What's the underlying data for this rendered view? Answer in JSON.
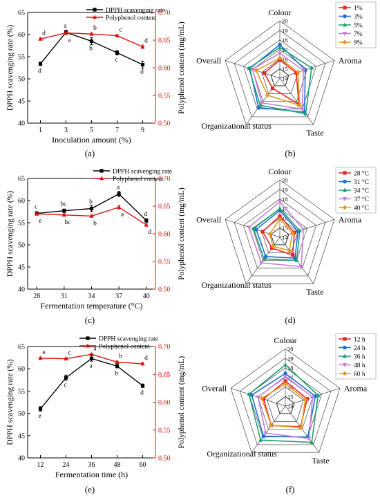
{
  "colors": {
    "dpph": "#000000",
    "polyphenol": "#e01010",
    "radar": [
      "#e5262b",
      "#1f6fd0",
      "#1f9e75",
      "#c77ddb",
      "#e39a1b"
    ]
  },
  "chart_data": [
    {
      "panel": "(a)",
      "type": "line",
      "xlabel": "Inoculation amount (%)",
      "ylabel": "DPPH scavenging rate (%)",
      "y2label": "Polyphenol content (mg/mL)",
      "x": [
        1,
        3,
        5,
        7,
        9
      ],
      "xlim": [
        0,
        10
      ],
      "ylim": [
        40,
        65
      ],
      "yticks": [
        40,
        45,
        50,
        55,
        60,
        65
      ],
      "y2lim": [
        0.5,
        0.7
      ],
      "y2ticks": [
        "0.50",
        "0.55",
        "0.60",
        "0.65",
        "0.70"
      ],
      "legend": "top-left",
      "series": [
        {
          "name": "DPPH scavenging rate",
          "axis": "left",
          "values": [
            53.4,
            60.5,
            58.5,
            55.9,
            53.2
          ],
          "errors": [
            0.4,
            0.5,
            0.8,
            0.5,
            0.8
          ],
          "letters": [
            "d",
            "a",
            "b",
            "c",
            "d"
          ]
        },
        {
          "name": "Polyphenol content",
          "axis": "right",
          "values": [
            0.652,
            0.663,
            0.661,
            0.658,
            0.638
          ],
          "errors": [
            0.002,
            0.002,
            0.002,
            0.002,
            0.003
          ],
          "letters": [
            "d",
            "a",
            "b",
            "c",
            "d"
          ]
        }
      ]
    },
    {
      "panel": "(c)",
      "type": "line",
      "xlabel": "Fermentation temperature (°C)",
      "ylabel": "DPPH scavenging rate (%)",
      "y2label": "Polyphenol content (mg/mL)",
      "x": [
        28,
        31,
        34,
        37,
        40
      ],
      "xlim": [
        27,
        41
      ],
      "ylim": [
        40,
        65
      ],
      "yticks": [
        40,
        45,
        50,
        55,
        60,
        65
      ],
      "y2lim": [
        0.5,
        0.7
      ],
      "y2ticks": [
        "0.50",
        "0.55",
        "0.60",
        "0.65",
        "0.70"
      ],
      "legend": "top-right",
      "series": [
        {
          "name": "DPPH scavenging rate",
          "axis": "left",
          "values": [
            57.1,
            57.7,
            58.2,
            61.5,
            55.5
          ],
          "errors": [
            0.4,
            0.4,
            0.7,
            0.6,
            0.4
          ],
          "letters": [
            "c",
            "bc",
            "b",
            "a",
            "d"
          ]
        },
        {
          "name": "Polyphenol content",
          "axis": "right",
          "values": [
            0.636,
            0.634,
            0.632,
            0.648,
            0.616
          ],
          "errors": [
            0.002,
            0.002,
            0.002,
            0.003,
            0.002
          ],
          "letters": [
            "e",
            "bc",
            "b",
            "a",
            "d"
          ]
        }
      ]
    },
    {
      "panel": "(e)",
      "type": "line",
      "xlabel": "Fermentation time (h)",
      "ylabel": "DPPH scavenging rate (%)",
      "y2label": "Polyphenol content (mg/mL)",
      "x": [
        12,
        24,
        36,
        48,
        60
      ],
      "xlim": [
        6,
        66
      ],
      "ylim": [
        40,
        65
      ],
      "yticks": [
        40,
        45,
        50,
        55,
        60,
        65
      ],
      "y2lim": [
        0.5,
        0.7
      ],
      "y2ticks": [
        "0.50",
        "0.55",
        "0.60",
        "0.65",
        "0.70"
      ],
      "legend": "top-left",
      "series": [
        {
          "name": "DPPH scavenging rate",
          "axis": "left",
          "values": [
            51.0,
            58.0,
            62.3,
            60.6,
            56.2
          ],
          "errors": [
            0.5,
            0.6,
            0.6,
            0.4,
            0.4
          ],
          "letters": [
            "e",
            "c",
            "a",
            "b",
            "d"
          ]
        },
        {
          "name": "Polyphenol content",
          "axis": "right",
          "values": [
            0.679,
            0.678,
            0.686,
            0.672,
            0.669
          ],
          "errors": [
            0.002,
            0.002,
            0.002,
            0.002,
            0.002
          ],
          "letters": [
            "e",
            "c",
            "a",
            "b",
            "d"
          ]
        }
      ]
    },
    {
      "panel": "(b)",
      "type": "radar",
      "axes": [
        "Colour",
        "Aroma",
        "Taste",
        "Organizational status",
        "Overall"
      ],
      "rlim": [
        14,
        20
      ],
      "rticks": [
        14,
        15,
        16,
        17,
        18,
        19,
        20
      ],
      "legend": "top-right",
      "series": [
        {
          "name": "1%",
          "values": [
            15.9,
            15.8,
            17.4,
            15.3,
            15.7
          ]
        },
        {
          "name": "3%",
          "values": [
            17.5,
            16.8,
            18.4,
            17.8,
            17.3
          ]
        },
        {
          "name": "5%",
          "values": [
            17.2,
            17.5,
            18.6,
            17.5,
            17.4
          ]
        },
        {
          "name": "7%",
          "values": [
            16.6,
            16.6,
            18.0,
            17.2,
            17.0
          ]
        },
        {
          "name": "9%",
          "values": [
            16.1,
            16.0,
            17.5,
            16.2,
            16.6
          ]
        }
      ]
    },
    {
      "panel": "(d)",
      "type": "radar",
      "axes": [
        "Colour",
        "Aroma",
        "Taste",
        "Organizational status",
        "Overall"
      ],
      "rlim": [
        14,
        20
      ],
      "rticks": [
        14,
        15,
        16,
        17,
        18,
        19,
        20
      ],
      "legend": "top-right",
      "series": [
        {
          "name": "28 °C",
          "values": [
            16.2,
            15.6,
            16.3,
            15.4,
            15.9
          ]
        },
        {
          "name": "31 °C",
          "values": [
            16.8,
            16.0,
            16.7,
            16.5,
            16.6
          ]
        },
        {
          "name": "34 °C",
          "values": [
            17.0,
            16.2,
            17.0,
            16.8,
            16.9
          ]
        },
        {
          "name": "37 °C",
          "values": [
            17.7,
            16.6,
            17.8,
            17.3,
            17.4
          ]
        },
        {
          "name": "40 °C",
          "values": [
            15.9,
            15.4,
            15.7,
            15.2,
            15.1
          ]
        }
      ]
    },
    {
      "panel": "(f)",
      "type": "radar",
      "axes": [
        "Colour",
        "Aroma",
        "Taste",
        "Organizational status",
        "Overall"
      ],
      "rlim": [
        14,
        20
      ],
      "rticks": [
        14,
        15,
        16,
        17,
        18,
        19,
        20
      ],
      "legend": "top-right",
      "series": [
        {
          "name": "12 h",
          "values": [
            16.6,
            16.4,
            16.7,
            16.5,
            16.4
          ]
        },
        {
          "name": "24 h",
          "values": [
            17.4,
            17.3,
            18.0,
            17.9,
            17.7
          ]
        },
        {
          "name": "36 h",
          "values": [
            18.3,
            17.6,
            18.7,
            18.4,
            18.0
          ]
        },
        {
          "name": "48 h",
          "values": [
            17.1,
            17.0,
            18.2,
            17.5,
            17.0
          ]
        },
        {
          "name": "60 h",
          "values": [
            16.3,
            16.2,
            16.8,
            16.5,
            16.6
          ]
        }
      ]
    }
  ]
}
